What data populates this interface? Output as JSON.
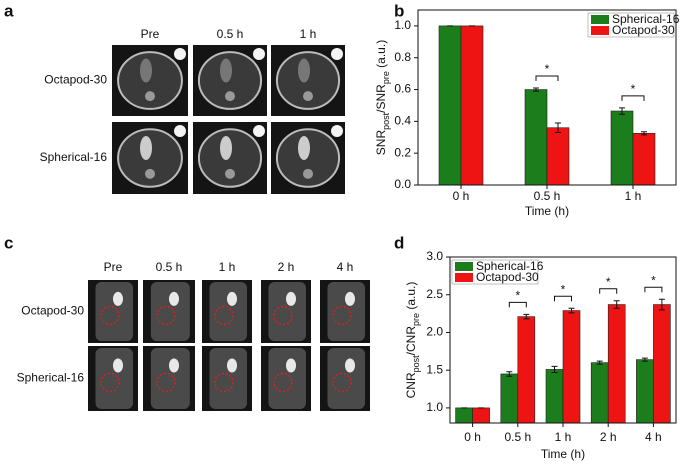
{
  "panel_labels": [
    "a",
    "b",
    "c",
    "d"
  ],
  "image_panels": [
    {
      "columns": [
        "Pre",
        "0.5 h",
        "1 h"
      ],
      "rows": [
        "Octapod-30",
        "Spherical-16"
      ]
    },
    {
      "columns": [
        "Pre",
        "0.5 h",
        "1 h",
        "2 h",
        "4 h"
      ],
      "rows": [
        "Octapod-30",
        "Spherical-16"
      ]
    }
  ],
  "chart_data": [
    {
      "type": "bar",
      "ylabel": [
        "SNR",
        "post",
        "/SNR",
        "pre",
        " (a.u.)"
      ],
      "xlabel": "Time (h)",
      "categories": [
        "0 h",
        "0.5 h",
        "1 h"
      ],
      "series": [
        {
          "name": "Spherical-16",
          "color": "#1b7d1b",
          "values": [
            1.0,
            0.6,
            0.465
          ],
          "errors": [
            0,
            0.01,
            0.02
          ]
        },
        {
          "name": "Octapod-30",
          "color": "#ee1414",
          "values": [
            1.0,
            0.36,
            0.325
          ],
          "errors": [
            0,
            0.03,
            0.01
          ]
        }
      ],
      "significance": [
        null,
        "*",
        "*"
      ],
      "ylim": [
        0,
        1.1
      ],
      "yticks": [
        {
          "value": 0,
          "label": "0.0"
        },
        0.2,
        0.4,
        0.6,
        0.8,
        {
          "value": 1,
          "label": "1.0"
        }
      ],
      "legend": "upper right"
    },
    {
      "type": "bar",
      "ylabel": [
        "CNR",
        "post",
        "/CNR",
        "pre",
        " (a.u.)"
      ],
      "xlabel": "Time (h)",
      "categories": [
        "0 h",
        "0.5 h",
        "1 h",
        "2 h",
        "4 h"
      ],
      "series": [
        {
          "name": "Spherical-16",
          "color": "#1b7d1b",
          "values": [
            1.0,
            1.45,
            1.51,
            1.6,
            1.64
          ],
          "errors": [
            0,
            0.03,
            0.04,
            0.02,
            0.02
          ]
        },
        {
          "name": "Octapod-30",
          "color": "#ee1414",
          "values": [
            1.0,
            2.21,
            2.29,
            2.37,
            2.37
          ],
          "errors": [
            0,
            0.03,
            0.03,
            0.05,
            0.07
          ]
        }
      ],
      "significance": [
        null,
        "*",
        "*",
        "*",
        "*"
      ],
      "ylim": [
        0.8,
        3.0
      ],
      "yticks": [
        {
          "value": 1,
          "label": "1.0"
        },
        1.5,
        {
          "value": 2,
          "label": "2.0"
        },
        2.5,
        {
          "value": 3,
          "label": "3.0"
        }
      ],
      "legend": "upper left"
    }
  ]
}
